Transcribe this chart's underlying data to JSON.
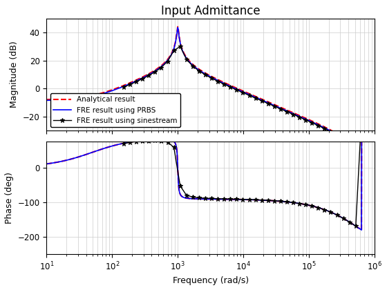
{
  "title": "Input Admittance",
  "xlabel": "Frequency (rad/s)",
  "ylabel_mag": "Magnitude (dB)",
  "ylabel_phase": "Phase (deg)",
  "freq_min": 10,
  "freq_max": 1000000,
  "mag_ylim": [
    -30,
    50
  ],
  "mag_yticks": [
    -20,
    0,
    20,
    40
  ],
  "phase_ylim": [
    -250,
    75
  ],
  "phase_yticks": [
    -200,
    -100,
    0
  ],
  "legend_labels": [
    "FRE result using PRBS",
    "FRE result using sinestream",
    "Analytical result"
  ],
  "prbs_color": "#0000FF",
  "sine_color": "#000000",
  "analytical_color": "#FF0000",
  "background_color": "#FFFFFF",
  "grid_color": "#CCCCCC",
  "title_fontsize": 12,
  "label_fontsize": 9,
  "tick_fontsize": 8.5,
  "legend_fontsize": 7.5
}
